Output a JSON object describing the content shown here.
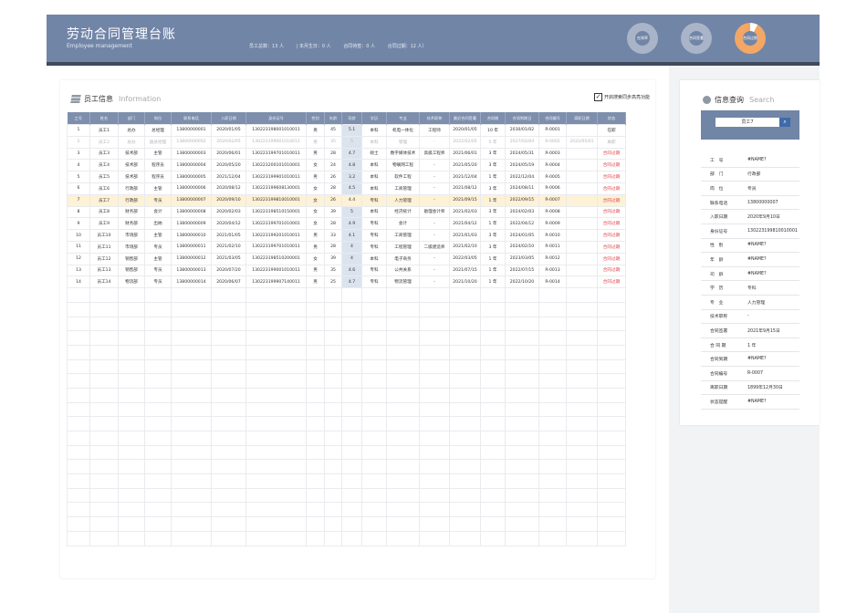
{
  "header": {
    "title": "劳动合同管理台账",
    "subtitle": "Employee management",
    "stats": [
      "员工总数：13 人",
      "| 本月生日：0 人",
      "合同待签：0 人",
      "合同过期：12 人）"
    ],
    "donuts": [
      {
        "label": "在岗率",
        "percent": 0,
        "color": "#aab4c8"
      },
      {
        "label": "合同签署",
        "percent": 0,
        "color": "#aab4c8"
      },
      {
        "label": "合同过期",
        "percent": 92,
        "color": "#f2a765"
      }
    ]
  },
  "employee_panel": {
    "title": "员工信息",
    "title_en": "Information",
    "sync_label": "开启搜索同步高亮功能",
    "columns": [
      "工号",
      "姓名",
      "部门",
      "岗位",
      "联系电话",
      "入职日期",
      "身份证号",
      "性别",
      "年龄",
      "司龄",
      "学历",
      "专业",
      "技术职称",
      "最近合同签署",
      "合同期",
      "合同到期日",
      "合同编号",
      "离职日期",
      "状态"
    ],
    "rows": [
      [
        "1",
        "员工1",
        "总办",
        "总经理",
        "13800000001",
        "2020/01/05",
        "130223198001010011",
        "男",
        "45",
        "5.1",
        "本科",
        "机电一体化",
        "工程师",
        "2020/01/05",
        "10 年",
        "2030/01/02",
        "R-0001",
        "",
        "在职"
      ],
      [
        "2",
        "员工2",
        "总办",
        "副总经理",
        "13800000002",
        "2020/02/05",
        "130223199001010011",
        "男",
        "35",
        "5",
        "本科",
        "管理",
        "-",
        "2022/02/05",
        "5 年",
        "2027/02/04",
        "R-0002",
        "2022/05/01",
        "离职"
      ],
      [
        "3",
        "员工3",
        "技术部",
        "主管",
        "13800000003",
        "2020/06/01",
        "130223199701010011",
        "男",
        "28",
        "4.7",
        "硕士",
        "数字媒体技术",
        "高级工程师",
        "2021/06/01",
        "3 年",
        "2024/05/31",
        "R-0003",
        "",
        "合同过期"
      ],
      [
        "4",
        "员工4",
        "技术部",
        "程序员",
        "13800000004",
        "2020/05/20",
        "130223200101010001",
        "女",
        "24",
        "4.8",
        "本科",
        "物联网工程",
        "-",
        "2021/05/20",
        "3 年",
        "2024/05/19",
        "R-0004",
        "",
        "合同过期"
      ],
      [
        "5",
        "员工5",
        "技术部",
        "程序员",
        "13800000005",
        "2021/12/04",
        "130223199901010011",
        "男",
        "26",
        "3.2",
        "本科",
        "软件工程",
        "-",
        "2021/12/04",
        "1 年",
        "2022/12/04",
        "R-0005",
        "",
        "合同过期"
      ],
      [
        "6",
        "员工6",
        "行政部",
        "主管",
        "13800000006",
        "2020/08/12",
        "130223199608130001",
        "女",
        "28",
        "4.5",
        "本科",
        "工商管理",
        "-",
        "2021/08/12",
        "3 年",
        "2024/08/11",
        "R-0006",
        "",
        "合同过期"
      ],
      [
        "7",
        "员工7",
        "行政部",
        "专员",
        "13800000007",
        "2020/09/10",
        "130223199810010001",
        "女",
        "26",
        "4.4",
        "专科",
        "人力管理",
        "-",
        "2021/09/15",
        "1 年",
        "2022/09/15",
        "R-0007",
        "",
        "合同过期"
      ],
      [
        "8",
        "员工8",
        "财务部",
        "会计",
        "13800000008",
        "2020/02/03",
        "130223198510150001",
        "女",
        "39",
        "5",
        "本科",
        "经济统计",
        "助理会计师",
        "2021/02/03",
        "3 年",
        "2024/02/03",
        "R-0008",
        "",
        "合同过期"
      ],
      [
        "9",
        "员工9",
        "财务部",
        "出纳",
        "13800000009",
        "2020/04/12",
        "130223199701010001",
        "女",
        "28",
        "4.9",
        "专科",
        "会计",
        "-",
        "2021/04/12",
        "1 年",
        "2022/04/12",
        "R-0009",
        "",
        "合同过期"
      ],
      [
        "10",
        "员工10",
        "市场部",
        "主管",
        "13800000010",
        "2021/01/05",
        "130223199201010011",
        "男",
        "33",
        "4.1",
        "专科",
        "工商管理",
        "-",
        "2021/01/03",
        "3 年",
        "2024/01/05",
        "R-0010",
        "",
        "合同过期"
      ],
      [
        "11",
        "员工11",
        "市场部",
        "专员",
        "13800000011",
        "2021/02/10",
        "130223199701010011",
        "男",
        "28",
        "4",
        "专科",
        "工程管理",
        "二级建造师",
        "2021/02/10",
        "3 年",
        "2024/02/10",
        "R-0011",
        "",
        "合同过期"
      ],
      [
        "12",
        "员工12",
        "销售部",
        "主管",
        "13800000012",
        "2021/03/05",
        "130223198510200001",
        "女",
        "39",
        "4",
        "本科",
        "电子商务",
        "-",
        "2022/03/05",
        "1 年",
        "2023/03/05",
        "R-0012",
        "",
        "合同过期"
      ],
      [
        "13",
        "员工13",
        "销售部",
        "专员",
        "13800000013",
        "2020/07/20",
        "130223199001010011",
        "男",
        "35",
        "4.6",
        "专科",
        "公共关系",
        "-",
        "2021/07/15",
        "1 年",
        "2022/07/15",
        "R-0013",
        "",
        "合同过期"
      ],
      [
        "14",
        "员工14",
        "物流部",
        "专员",
        "13800000014",
        "2020/06/07",
        "130223199907140011",
        "男",
        "25",
        "4.7",
        "专科",
        "物流管理",
        "-",
        "2021/10/20",
        "1 年",
        "2022/10/20",
        "R-0014",
        "",
        "合同过期"
      ]
    ]
  },
  "search_panel": {
    "title": "信息查询",
    "title_en": "Search",
    "query": "员工7",
    "fields": [
      {
        "k": "工　号",
        "v": "#NAME?"
      },
      {
        "k": "部　门",
        "v": "行政部"
      },
      {
        "k": "岗　位",
        "v": "专员"
      },
      {
        "k": "联系电话",
        "v": "13800000007"
      },
      {
        "k": "入职日期",
        "v": "2020年9月10日"
      },
      {
        "k": "身份证号",
        "v": "130223199810010001"
      },
      {
        "k": "性　别",
        "v": "#NAME?"
      },
      {
        "k": "年　龄",
        "v": "#NAME?"
      },
      {
        "k": "司　龄",
        "v": "#NAME?"
      },
      {
        "k": "学　历",
        "v": "专科"
      },
      {
        "k": "专　业",
        "v": "人力管理"
      },
      {
        "k": "技术职称",
        "v": "-"
      },
      {
        "k": "合同签署",
        "v": "2021年9月15日"
      },
      {
        "k": "合 同 期",
        "v": "1 年"
      },
      {
        "k": "合同到期",
        "v": "#NAME?"
      },
      {
        "k": "合同编号",
        "v": "R-0007"
      },
      {
        "k": "离职日期",
        "v": "1899年12月30日"
      },
      {
        "k": "状态提醒",
        "v": "#NAME?"
      }
    ]
  }
}
